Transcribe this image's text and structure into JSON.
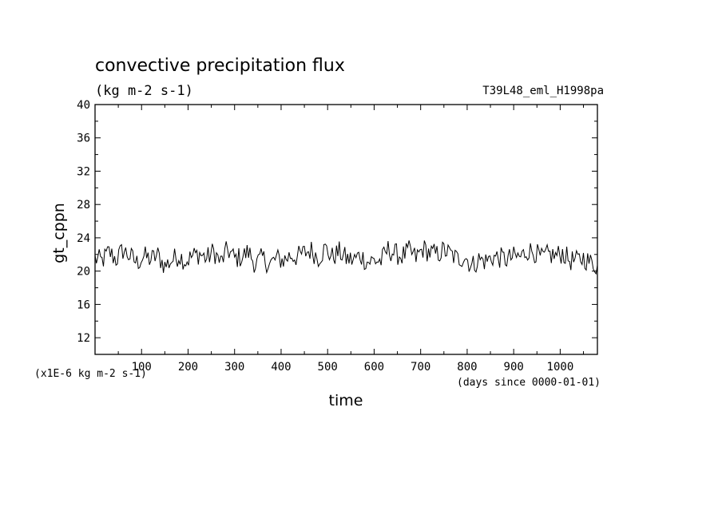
{
  "chart_data": {
    "type": "line",
    "title": "convective precipitation flux",
    "subtitle": "(kg m-2 s-1)",
    "run_label": "T39L48_eml_H1998pa",
    "xlabel": "time",
    "ylabel": "gt_cppn",
    "x_units_note": "(days since 0000-01-01)",
    "y_scale_note": "(x1E-6 kg m-2 s-1)",
    "xlim": [
      0,
      1080
    ],
    "ylim": [
      10,
      40
    ],
    "x_ticks": [
      100,
      200,
      300,
      400,
      500,
      600,
      700,
      800,
      900,
      1000
    ],
    "y_ticks": [
      12,
      16,
      20,
      24,
      28,
      32,
      36,
      40
    ],
    "grid": false,
    "series": [
      {
        "x": [
          0,
          15,
          30,
          45,
          60,
          75,
          90,
          105,
          120,
          135,
          150,
          165,
          180,
          195,
          210,
          225,
          240,
          255,
          270,
          285,
          300,
          315,
          330,
          345,
          360,
          375,
          390,
          405,
          420,
          435,
          450,
          465,
          480,
          495,
          510,
          525,
          540,
          555,
          570,
          585,
          600,
          615,
          630,
          645,
          660,
          675,
          690,
          705,
          720,
          735,
          750,
          765,
          780,
          795,
          810,
          825,
          840,
          855,
          870,
          885,
          900,
          915,
          930,
          945,
          960,
          975,
          990,
          1005,
          1020,
          1035,
          1050,
          1065,
          1080
        ],
        "y": [
          21.5,
          21.2,
          22.3,
          21.4,
          22.5,
          21.8,
          21.0,
          21.8,
          21.4,
          21.9,
          20.6,
          21.3,
          21.9,
          21.2,
          21.8,
          22.1,
          21.5,
          22.4,
          21.0,
          22.6,
          21.5,
          21.7,
          22.3,
          20.8,
          21.6,
          20.8,
          21.5,
          21.3,
          21.9,
          21.7,
          22.2,
          22.5,
          21.6,
          22.7,
          21.7,
          22.3,
          21.5,
          21.3,
          21.9,
          21.1,
          21.3,
          21.2,
          22.6,
          22.1,
          21.8,
          22.4,
          21.6,
          22.7,
          22.2,
          22.0,
          22.5,
          22.0,
          21.4,
          21.8,
          20.6,
          21.4,
          21.2,
          21.7,
          21.6,
          21.4,
          21.7,
          21.7,
          22.5,
          22.3,
          21.5,
          22.0,
          21.8,
          22.2,
          21.3,
          21.2,
          21.6,
          21.0,
          20.7
        ]
      }
    ]
  }
}
